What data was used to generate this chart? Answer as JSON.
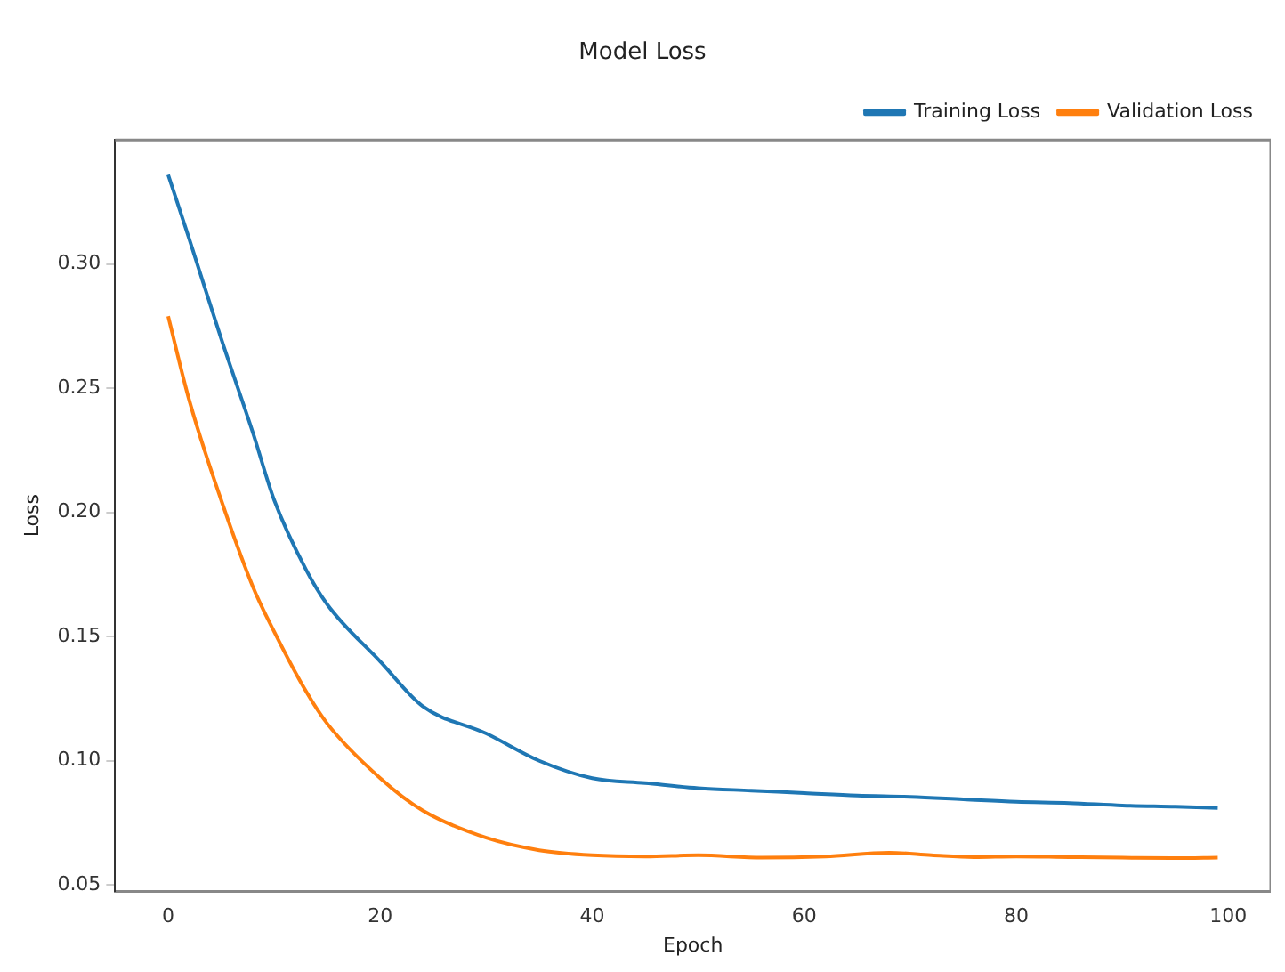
{
  "chart_data": {
    "type": "line",
    "title": "Model Loss",
    "xlabel": "Epoch",
    "ylabel": "Loss",
    "xlim": [
      -5,
      104
    ],
    "ylim": [
      0.0475,
      0.35
    ],
    "xticks": [
      0,
      20,
      40,
      60,
      80,
      100
    ],
    "yticks": [
      0.05,
      {
        "value": 0.1,
        "label": "0.10"
      },
      0.15,
      {
        "value": 0.2,
        "label": "0.20"
      },
      0.25,
      {
        "value": 0.3,
        "label": "0.30"
      }
    ],
    "grid": false,
    "legend": "top right",
    "marker": "none",
    "line_style": "solid",
    "series": [
      {
        "name": "Training Loss",
        "color": "#1f77b4",
        "x": [
          0,
          2,
          5,
          8,
          10,
          13,
          15,
          20,
          24,
          30,
          35,
          40,
          45,
          50,
          55,
          60,
          65,
          70,
          75,
          80,
          85,
          90,
          95,
          99
        ],
        "values": [
          0.336,
          0.31,
          0.27,
          0.232,
          0.205,
          0.177,
          0.163,
          0.14,
          0.122,
          0.111,
          0.1,
          0.093,
          0.091,
          0.089,
          0.088,
          0.087,
          0.086,
          0.0855,
          0.0845,
          0.0835,
          0.083,
          0.082,
          0.0815,
          0.081
        ]
      },
      {
        "name": "Validation Loss",
        "color": "#ff7f0e",
        "x": [
          0,
          2,
          5,
          8,
          10,
          13,
          15,
          20,
          24,
          30,
          35,
          40,
          45,
          50,
          56,
          62,
          68,
          72,
          76,
          80,
          85,
          90,
          95,
          99
        ],
        "values": [
          0.279,
          0.245,
          0.205,
          0.17,
          0.152,
          0.128,
          0.115,
          0.093,
          0.08,
          0.069,
          0.064,
          0.062,
          0.0615,
          0.062,
          0.061,
          0.0615,
          0.063,
          0.062,
          0.0612,
          0.0615,
          0.0612,
          0.061,
          0.0608,
          0.061
        ]
      }
    ]
  }
}
